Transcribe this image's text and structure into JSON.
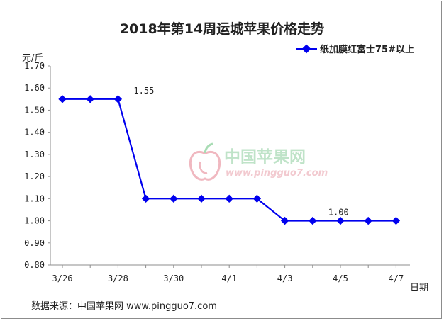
{
  "chart_data": {
    "type": "line",
    "title": "2018年第14周运城苹果价格走势",
    "ylabel": "元/斤",
    "xlabel": "日期",
    "ylim": [
      0.8,
      1.7
    ],
    "yticks": [
      "0.80",
      "0.90",
      "1.00",
      "1.10",
      "1.20",
      "1.30",
      "1.40",
      "1.50",
      "1.60",
      "1.70"
    ],
    "x": [
      "3/26",
      "3/27",
      "3/28",
      "3/29",
      "3/30",
      "3/31",
      "4/1",
      "4/2",
      "4/3",
      "4/4",
      "4/5",
      "4/6",
      "4/7"
    ],
    "xtick_labels": [
      "3/26",
      "",
      "3/28",
      "",
      "3/30",
      "",
      "4/1",
      "",
      "4/3",
      "",
      "4/5",
      "",
      "4/7"
    ],
    "series": [
      {
        "name": "纸加膜红富士75#以上",
        "values": [
          1.55,
          1.55,
          1.55,
          1.1,
          1.1,
          1.1,
          1.1,
          1.1,
          1.0,
          1.0,
          1.0,
          1.0,
          1.0
        ],
        "color": "#0000ee"
      }
    ],
    "annotations": [
      {
        "text": "1.55",
        "x": "3/28",
        "y": 1.55
      },
      {
        "text": "1.00",
        "x": "4/4",
        "y": 1.0
      }
    ],
    "grid": false,
    "legend": "top-right"
  },
  "watermark": {
    "cn": "中国苹果网",
    "en": "www.pingguo7.com"
  },
  "source": "数据来源：中国苹果网 www.pingguo7.com"
}
